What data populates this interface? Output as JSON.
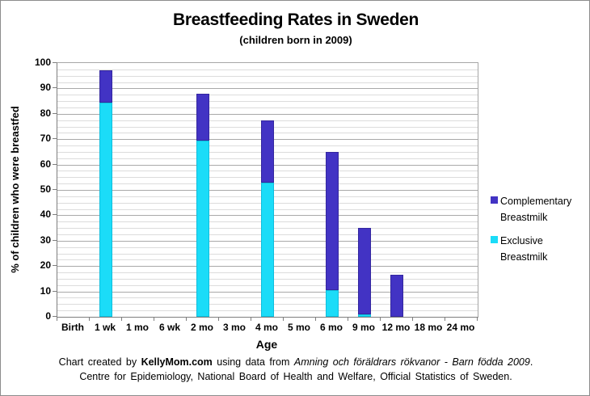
{
  "title": "Breastfeeding Rates in Sweden",
  "subtitle": "(children born in 2009)",
  "y_axis": {
    "title": "% of children who were breastfed"
  },
  "x_axis": {
    "title": "Age"
  },
  "legend": [
    {
      "line1": "Complementary",
      "line2": "Breastmilk",
      "color": "#4233c4"
    },
    {
      "line1": "Exclusive",
      "line2": "Breastmilk",
      "color": "#1bdcf8"
    }
  ],
  "footer": {
    "line1_parts": [
      {
        "text": "Chart created by ",
        "style": "regular"
      },
      {
        "text": "KellyMom.com",
        "style": "bold"
      },
      {
        "text": " using data from ",
        "style": "regular"
      },
      {
        "text": "Amning och föräldrars rökvanor - Barn födda 2009",
        "style": "italic"
      },
      {
        "text": ".",
        "style": "regular"
      }
    ],
    "line2": "Centre for Epidemiology, National Board of Health and Welfare, Official Statistics of Sweden."
  },
  "colors": {
    "exclusive_fill": "#1bdcf8",
    "exclusive_border": "#10bedd",
    "complementary_fill": "#4233c4",
    "complementary_border": "#34279f",
    "gridline_major": "#a9a9a9",
    "gridline_minor": "#dcdcdc",
    "axis": "#7f7f7f"
  },
  "chart_data": {
    "type": "bar",
    "stacked": true,
    "title": "Breastfeeding Rates in Sweden",
    "subtitle": "(children born in 2009)",
    "xlabel": "Age",
    "ylabel": "% of children who were breastfed",
    "categories": [
      "Birth",
      "1 wk",
      "1 mo",
      "6 wk",
      "2 mo",
      "3 mo",
      "4 mo",
      "5 mo",
      "6 mo",
      "9 mo",
      "12 mo",
      "18 mo",
      "24 mo"
    ],
    "series": [
      {
        "name": "Exclusive Breastmilk",
        "values": [
          0,
          84.5,
          0,
          0,
          69.5,
          0,
          53,
          0,
          10.5,
          1,
          0,
          0,
          0
        ]
      },
      {
        "name": "Complementary Breastmilk",
        "values": [
          0,
          12.5,
          0,
          0,
          18.5,
          0,
          24.5,
          0,
          54.5,
          34,
          16.5,
          0,
          0
        ]
      }
    ],
    "totals": [
      0,
      97,
      0,
      0,
      88,
      0,
      77.5,
      0,
      65,
      35,
      16.5,
      0,
      0
    ],
    "ylim": [
      0,
      100
    ],
    "y_major_step": 10,
    "y_minor_step": 2.5,
    "grid": true,
    "legend_position": "right"
  }
}
